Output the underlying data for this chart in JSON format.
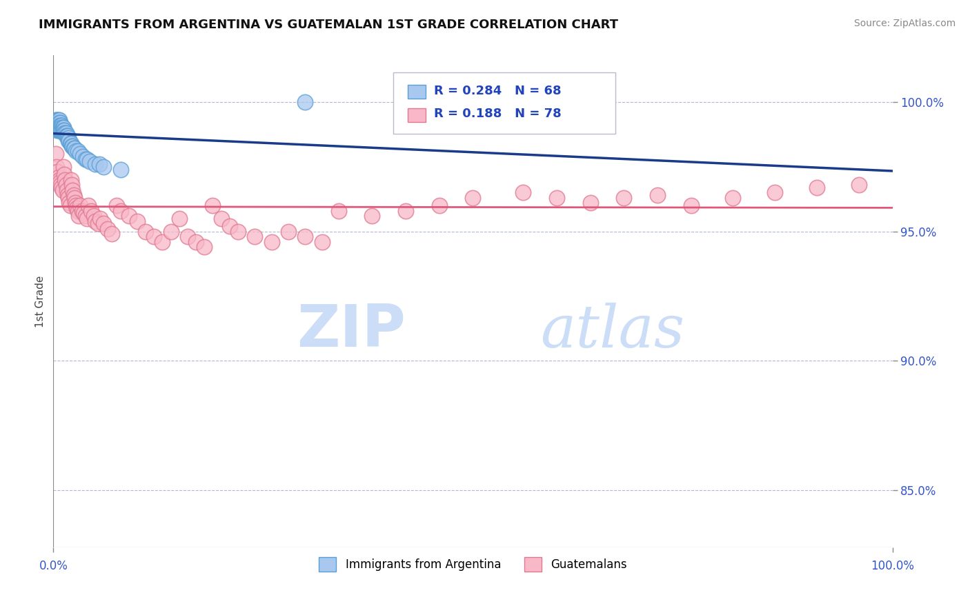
{
  "title": "IMMIGRANTS FROM ARGENTINA VS GUATEMALAN 1ST GRADE CORRELATION CHART",
  "source": "Source: ZipAtlas.com",
  "ylabel": "1st Grade",
  "y_ticks": [
    0.85,
    0.9,
    0.95,
    1.0
  ],
  "y_tick_labels": [
    "85.0%",
    "90.0%",
    "95.0%",
    "100.0%"
  ],
  "x_range": [
    0.0,
    1.0
  ],
  "y_range": [
    0.828,
    1.018
  ],
  "argentina_R": 0.284,
  "argentina_N": 68,
  "guatemalan_R": 0.188,
  "guatemalan_N": 78,
  "argentina_color": "#a8c8f0",
  "argentina_edge": "#5a9fd4",
  "guatemalan_color": "#f8b8c8",
  "guatemalan_edge": "#e07890",
  "trendline_argentina_color": "#1a3a8a",
  "trendline_guatemalan_color": "#e05878",
  "watermark_zip": "ZIP",
  "watermark_atlas": "atlas",
  "watermark_color": "#ccddf8",
  "argentina_x": [
    0.002,
    0.002,
    0.002,
    0.003,
    0.003,
    0.003,
    0.003,
    0.004,
    0.004,
    0.004,
    0.004,
    0.005,
    0.005,
    0.005,
    0.005,
    0.005,
    0.006,
    0.006,
    0.006,
    0.006,
    0.006,
    0.007,
    0.007,
    0.007,
    0.007,
    0.007,
    0.008,
    0.008,
    0.008,
    0.008,
    0.009,
    0.009,
    0.009,
    0.01,
    0.01,
    0.01,
    0.011,
    0.011,
    0.012,
    0.012,
    0.013,
    0.013,
    0.014,
    0.015,
    0.015,
    0.016,
    0.017,
    0.018,
    0.018,
    0.019,
    0.02,
    0.021,
    0.022,
    0.023,
    0.024,
    0.025,
    0.027,
    0.029,
    0.032,
    0.035,
    0.038,
    0.04,
    0.043,
    0.05,
    0.055,
    0.06,
    0.08,
    0.3
  ],
  "argentina_y": [
    0.992,
    0.991,
    0.99,
    0.993,
    0.992,
    0.991,
    0.99,
    0.993,
    0.992,
    0.991,
    0.99,
    0.993,
    0.992,
    0.991,
    0.99,
    0.989,
    0.993,
    0.992,
    0.991,
    0.99,
    0.989,
    0.993,
    0.992,
    0.991,
    0.99,
    0.989,
    0.992,
    0.991,
    0.99,
    0.989,
    0.991,
    0.99,
    0.989,
    0.991,
    0.99,
    0.989,
    0.99,
    0.989,
    0.99,
    0.989,
    0.989,
    0.988,
    0.988,
    0.988,
    0.987,
    0.987,
    0.987,
    0.986,
    0.985,
    0.985,
    0.984,
    0.984,
    0.983,
    0.983,
    0.982,
    0.982,
    0.981,
    0.981,
    0.98,
    0.979,
    0.978,
    0.978,
    0.977,
    0.976,
    0.976,
    0.975,
    0.974,
    1.0
  ],
  "guatemalan_x": [
    0.003,
    0.004,
    0.005,
    0.006,
    0.007,
    0.008,
    0.009,
    0.01,
    0.011,
    0.012,
    0.013,
    0.014,
    0.015,
    0.016,
    0.017,
    0.018,
    0.019,
    0.02,
    0.021,
    0.022,
    0.023,
    0.024,
    0.025,
    0.026,
    0.027,
    0.028,
    0.029,
    0.03,
    0.032,
    0.034,
    0.036,
    0.038,
    0.04,
    0.042,
    0.045,
    0.048,
    0.05,
    0.053,
    0.056,
    0.06,
    0.065,
    0.07,
    0.075,
    0.08,
    0.09,
    0.1,
    0.11,
    0.12,
    0.13,
    0.14,
    0.15,
    0.16,
    0.17,
    0.18,
    0.19,
    0.2,
    0.21,
    0.22,
    0.24,
    0.26,
    0.28,
    0.3,
    0.32,
    0.34,
    0.38,
    0.42,
    0.46,
    0.5,
    0.56,
    0.6,
    0.64,
    0.68,
    0.72,
    0.76,
    0.81,
    0.86,
    0.91,
    0.96
  ],
  "guatemalan_y": [
    0.98,
    0.975,
    0.973,
    0.971,
    0.97,
    0.969,
    0.968,
    0.967,
    0.966,
    0.975,
    0.972,
    0.97,
    0.968,
    0.966,
    0.964,
    0.963,
    0.961,
    0.96,
    0.97,
    0.968,
    0.966,
    0.964,
    0.963,
    0.961,
    0.96,
    0.959,
    0.958,
    0.956,
    0.96,
    0.958,
    0.957,
    0.956,
    0.955,
    0.96,
    0.958,
    0.956,
    0.954,
    0.953,
    0.955,
    0.953,
    0.951,
    0.949,
    0.96,
    0.958,
    0.956,
    0.954,
    0.95,
    0.948,
    0.946,
    0.95,
    0.955,
    0.948,
    0.946,
    0.944,
    0.96,
    0.955,
    0.952,
    0.95,
    0.948,
    0.946,
    0.95,
    0.948,
    0.946,
    0.958,
    0.956,
    0.958,
    0.96,
    0.963,
    0.965,
    0.963,
    0.961,
    0.963,
    0.964,
    0.96,
    0.963,
    0.965,
    0.967,
    0.968
  ]
}
